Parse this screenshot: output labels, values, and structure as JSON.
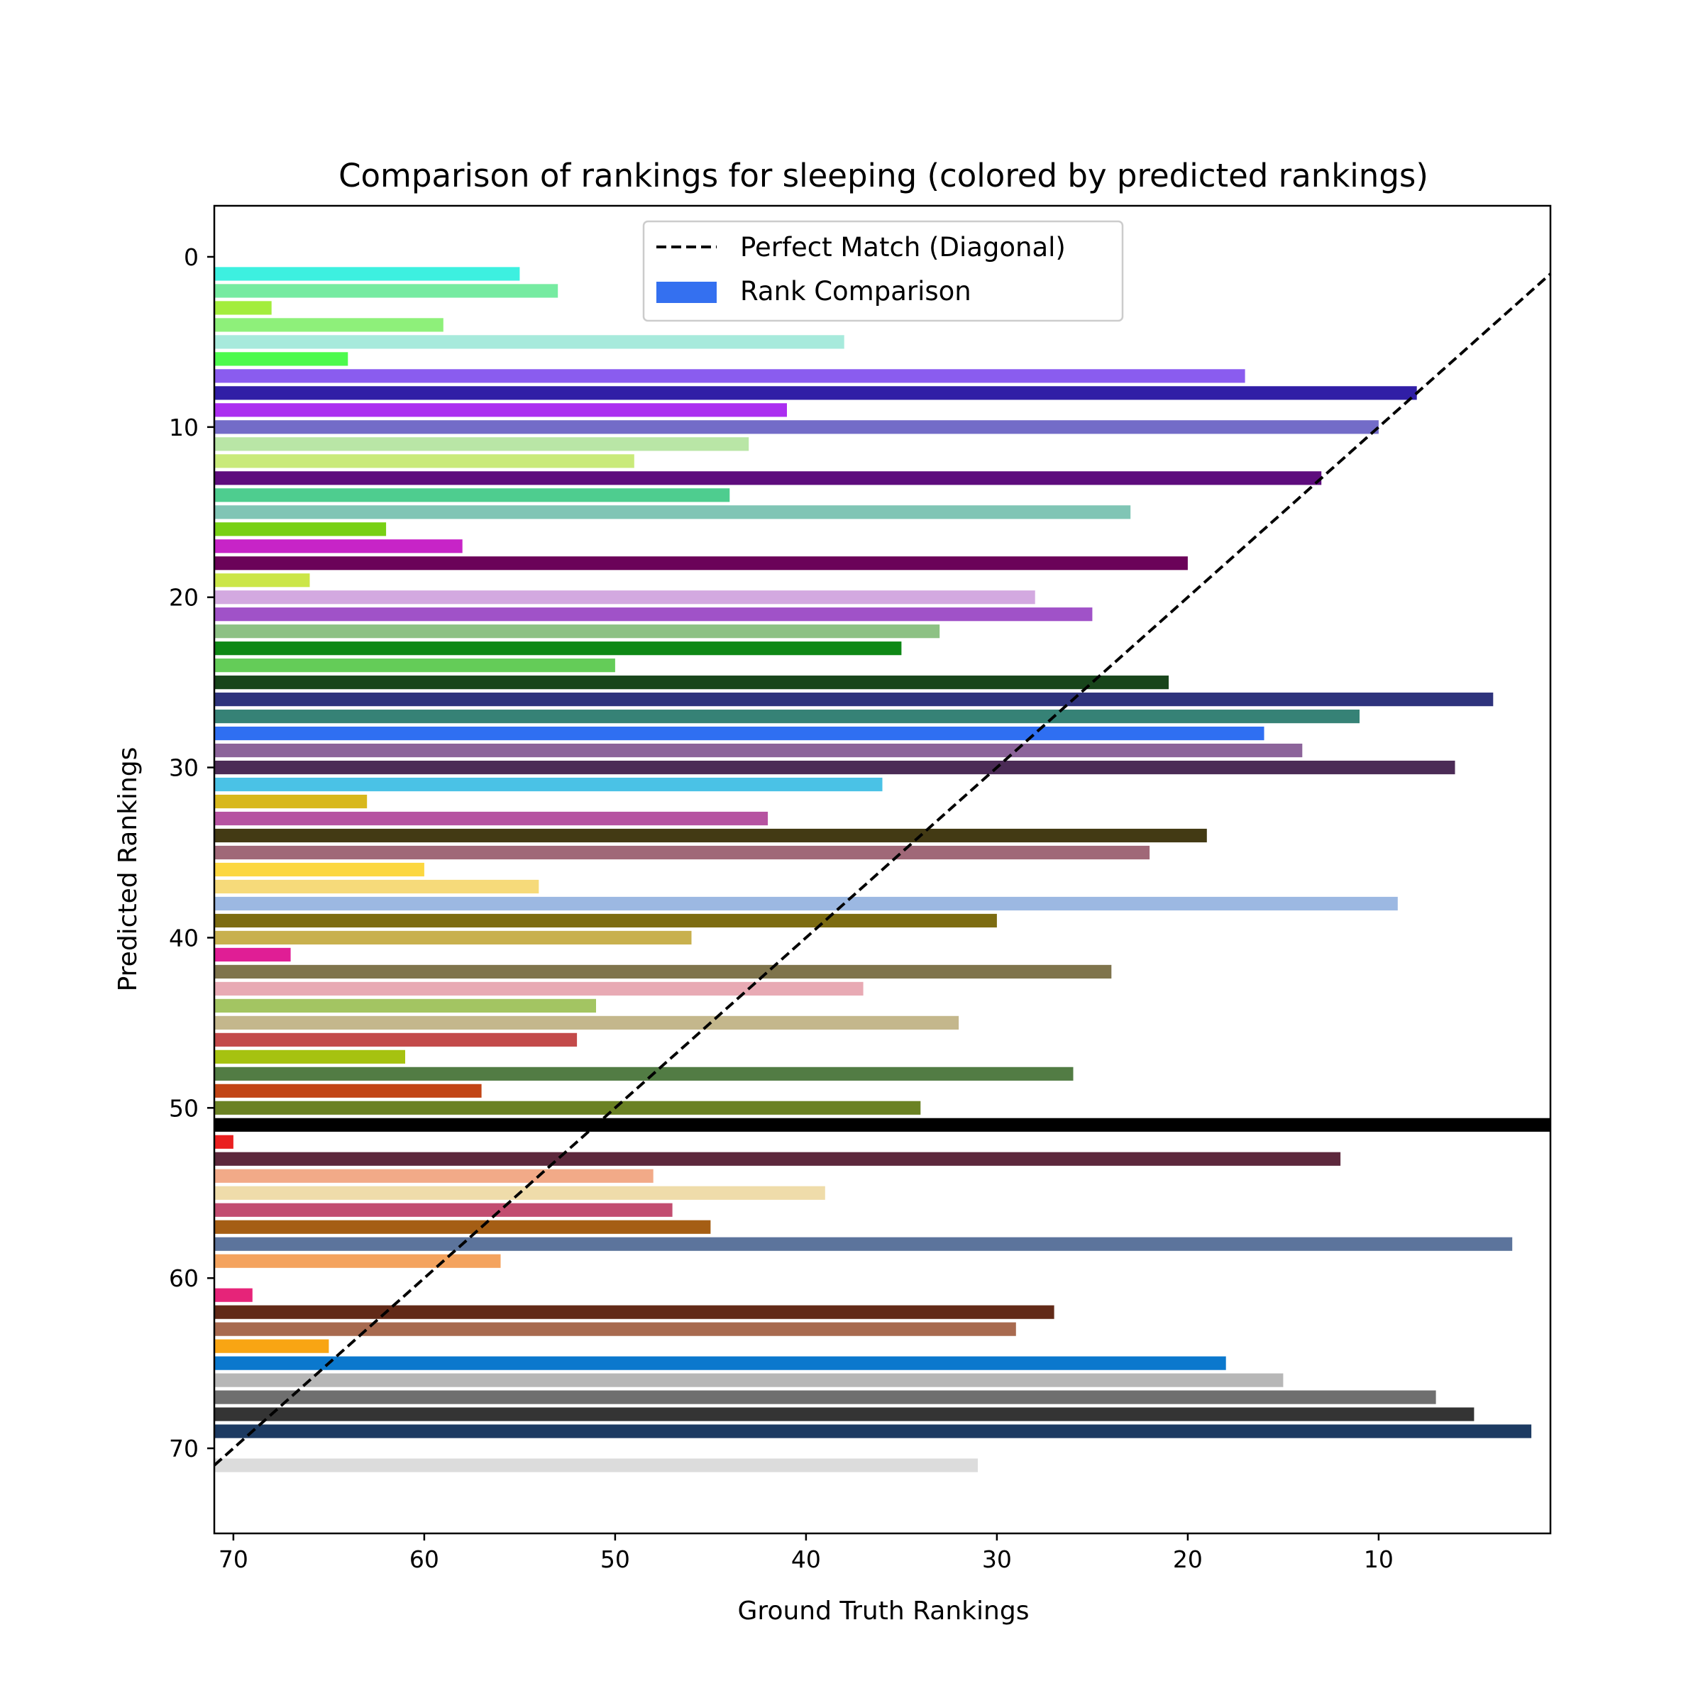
{
  "chart_data": {
    "type": "bar",
    "orientation": "horizontal",
    "title": "Comparison of rankings for sleeping (colored by predicted rankings)",
    "xlabel": "Ground Truth Rankings",
    "ylabel": "Predicted Rankings",
    "xlim": [
      71,
      1
    ],
    "ylim": [
      75,
      -3
    ],
    "x_inverted": true,
    "y_inverted": true,
    "xticks": [
      70,
      60,
      50,
      40,
      30,
      20,
      10
    ],
    "yticks": [
      0,
      10,
      20,
      30,
      40,
      50,
      60,
      70
    ],
    "grid": false,
    "legend_position": "upper center",
    "legend": [
      {
        "label": "Perfect Match (Diagonal)",
        "style": "dashed-line",
        "color": "#000000"
      },
      {
        "label": "Rank Comparison",
        "style": "patch",
        "color": "#3470f0"
      }
    ],
    "diagonal": {
      "from": [
        71,
        71
      ],
      "to": [
        1,
        1
      ],
      "color": "#000000",
      "dash": true
    },
    "bars": [
      {
        "predicted": 1,
        "ground_truth": 55,
        "color": "#3df0e0"
      },
      {
        "predicted": 2,
        "ground_truth": 53,
        "color": "#76eba1"
      },
      {
        "predicted": 3,
        "ground_truth": 68,
        "color": "#a3ed3d"
      },
      {
        "predicted": 4,
        "ground_truth": 59,
        "color": "#8ef07a"
      },
      {
        "predicted": 5,
        "ground_truth": 38,
        "color": "#a7eadc"
      },
      {
        "predicted": 6,
        "ground_truth": 64,
        "color": "#4dfa4d"
      },
      {
        "predicted": 7,
        "ground_truth": 17,
        "color": "#8a5cef"
      },
      {
        "predicted": 8,
        "ground_truth": 8,
        "color": "#301ea6"
      },
      {
        "predicted": 9,
        "ground_truth": 41,
        "color": "#ab2ef0"
      },
      {
        "predicted": 10,
        "ground_truth": 10,
        "color": "#736cc8"
      },
      {
        "predicted": 11,
        "ground_truth": 43,
        "color": "#b9e6a6"
      },
      {
        "predicted": 12,
        "ground_truth": 49,
        "color": "#c9ea7a"
      },
      {
        "predicted": 13,
        "ground_truth": 13,
        "color": "#5e0c7d"
      },
      {
        "predicted": 14,
        "ground_truth": 44,
        "color": "#4ecd8f"
      },
      {
        "predicted": 15,
        "ground_truth": 23,
        "color": "#80c5b5"
      },
      {
        "predicted": 16,
        "ground_truth": 62,
        "color": "#78d014"
      },
      {
        "predicted": 17,
        "ground_truth": 58,
        "color": "#c724c7"
      },
      {
        "predicted": 18,
        "ground_truth": 20,
        "color": "#6b0359"
      },
      {
        "predicted": 19,
        "ground_truth": 66,
        "color": "#cbe648"
      },
      {
        "predicted": 20,
        "ground_truth": 28,
        "color": "#d3a9e0"
      },
      {
        "predicted": 21,
        "ground_truth": 25,
        "color": "#a052c8"
      },
      {
        "predicted": 22,
        "ground_truth": 33,
        "color": "#8dc184"
      },
      {
        "predicted": 23,
        "ground_truth": 35,
        "color": "#0f8816"
      },
      {
        "predicted": 24,
        "ground_truth": 50,
        "color": "#64cc58"
      },
      {
        "predicted": 25,
        "ground_truth": 21,
        "color": "#18451b"
      },
      {
        "predicted": 26,
        "ground_truth": 4,
        "color": "#2e337c"
      },
      {
        "predicted": 27,
        "ground_truth": 11,
        "color": "#368276"
      },
      {
        "predicted": 28,
        "ground_truth": 16,
        "color": "#2f6ff2"
      },
      {
        "predicted": 29,
        "ground_truth": 14,
        "color": "#8c649a"
      },
      {
        "predicted": 30,
        "ground_truth": 6,
        "color": "#4b2b56"
      },
      {
        "predicted": 31,
        "ground_truth": 36,
        "color": "#4ac2e6"
      },
      {
        "predicted": 32,
        "ground_truth": 63,
        "color": "#d8b81d"
      },
      {
        "predicted": 33,
        "ground_truth": 42,
        "color": "#b653a1"
      },
      {
        "predicted": 34,
        "ground_truth": 19,
        "color": "#433a14"
      },
      {
        "predicted": 35,
        "ground_truth": 22,
        "color": "#a06878"
      },
      {
        "predicted": 36,
        "ground_truth": 60,
        "color": "#fcd740"
      },
      {
        "predicted": 37,
        "ground_truth": 54,
        "color": "#f6da7a"
      },
      {
        "predicted": 38,
        "ground_truth": 9,
        "color": "#9cb8e2"
      },
      {
        "predicted": 39,
        "ground_truth": 30,
        "color": "#7d6c12"
      },
      {
        "predicted": 40,
        "ground_truth": 46,
        "color": "#c8b04e"
      },
      {
        "predicted": 41,
        "ground_truth": 67,
        "color": "#e01e95"
      },
      {
        "predicted": 42,
        "ground_truth": 24,
        "color": "#7f744c"
      },
      {
        "predicted": 43,
        "ground_truth": 37,
        "color": "#e8aab4"
      },
      {
        "predicted": 44,
        "ground_truth": 51,
        "color": "#a3c562"
      },
      {
        "predicted": 45,
        "ground_truth": 32,
        "color": "#c4b78c"
      },
      {
        "predicted": 46,
        "ground_truth": 52,
        "color": "#c34a4a"
      },
      {
        "predicted": 47,
        "ground_truth": 61,
        "color": "#a6c210"
      },
      {
        "predicted": 48,
        "ground_truth": 26,
        "color": "#527c44"
      },
      {
        "predicted": 49,
        "ground_truth": 57,
        "color": "#c24516"
      },
      {
        "predicted": 50,
        "ground_truth": 34,
        "color": "#6b8224"
      },
      {
        "predicted": 51,
        "ground_truth": 1,
        "color": "#000000"
      },
      {
        "predicted": 52,
        "ground_truth": 70,
        "color": "#ea2020"
      },
      {
        "predicted": 53,
        "ground_truth": 12,
        "color": "#5d283c"
      },
      {
        "predicted": 54,
        "ground_truth": 48,
        "color": "#f2aa88"
      },
      {
        "predicted": 55,
        "ground_truth": 39,
        "color": "#efdcaa"
      },
      {
        "predicted": 56,
        "ground_truth": 47,
        "color": "#c24d70"
      },
      {
        "predicted": 57,
        "ground_truth": 45,
        "color": "#a55e14"
      },
      {
        "predicted": 58,
        "ground_truth": 3,
        "color": "#5c749c"
      },
      {
        "predicted": 59,
        "ground_truth": 56,
        "color": "#f4a35e"
      },
      {
        "predicted": 61,
        "ground_truth": 69,
        "color": "#e62479"
      },
      {
        "predicted": 62,
        "ground_truth": 27,
        "color": "#622a18"
      },
      {
        "predicted": 63,
        "ground_truth": 29,
        "color": "#a86a4f"
      },
      {
        "predicted": 64,
        "ground_truth": 65,
        "color": "#f9a513"
      },
      {
        "predicted": 65,
        "ground_truth": 18,
        "color": "#0b78cd"
      },
      {
        "predicted": 66,
        "ground_truth": 15,
        "color": "#b7b7b7"
      },
      {
        "predicted": 67,
        "ground_truth": 7,
        "color": "#6f6f6f"
      },
      {
        "predicted": 68,
        "ground_truth": 5,
        "color": "#343434"
      },
      {
        "predicted": 69,
        "ground_truth": 2,
        "color": "#1d3b62"
      },
      {
        "predicted": 71,
        "ground_truth": 31,
        "color": "#dcdcdc"
      }
    ]
  }
}
